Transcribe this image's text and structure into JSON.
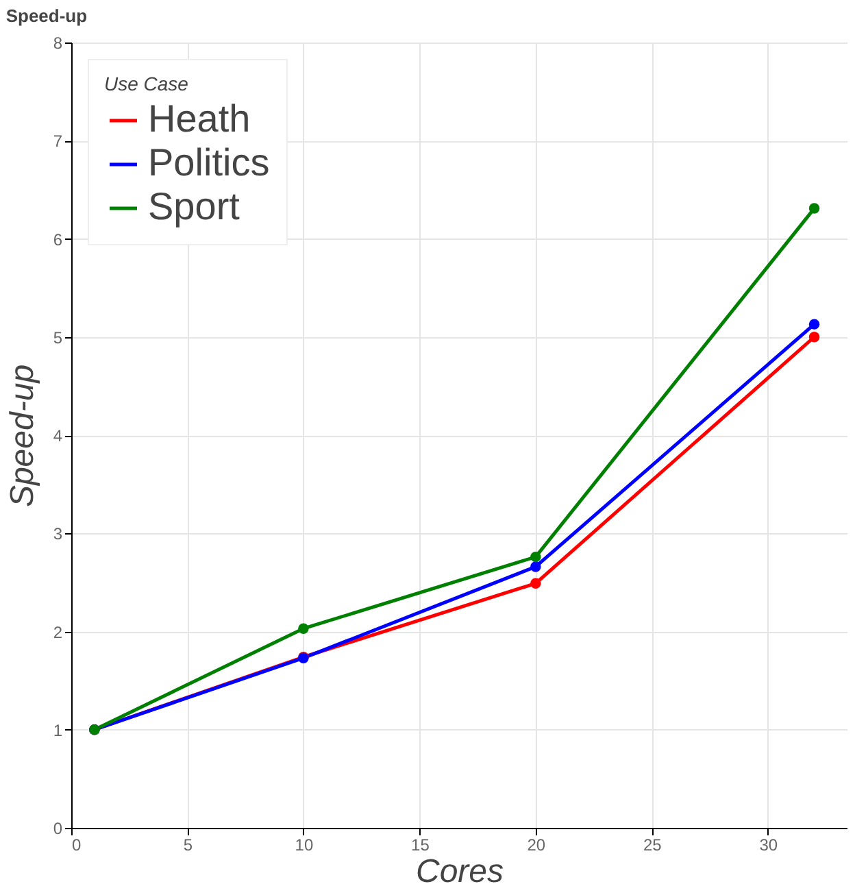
{
  "chart_data": {
    "type": "line",
    "title": "Speed-up",
    "xlabel": "Cores",
    "ylabel": "Speed-up",
    "legend_title": "Use Case",
    "x": [
      1,
      10,
      20,
      32
    ],
    "series": [
      {
        "name": "Heath",
        "color": "#ff0000",
        "values": [
          1,
          1.74,
          2.49,
          5.0
        ]
      },
      {
        "name": "Politics",
        "color": "#0000ff",
        "values": [
          1,
          1.73,
          2.66,
          5.13
        ]
      },
      {
        "name": "Sport",
        "color": "#008000",
        "values": [
          1,
          2.03,
          2.76,
          6.31
        ]
      }
    ],
    "xlim": [
      0,
      33.4
    ],
    "xticks": [
      0,
      5,
      10,
      15,
      20,
      25,
      30
    ],
    "ylim": [
      0,
      8
    ],
    "yticks": [
      0,
      1,
      2,
      3,
      4,
      5,
      6,
      7,
      8
    ],
    "grid": true,
    "legend": "top left",
    "marker": "circle",
    "line_style": "solid"
  }
}
